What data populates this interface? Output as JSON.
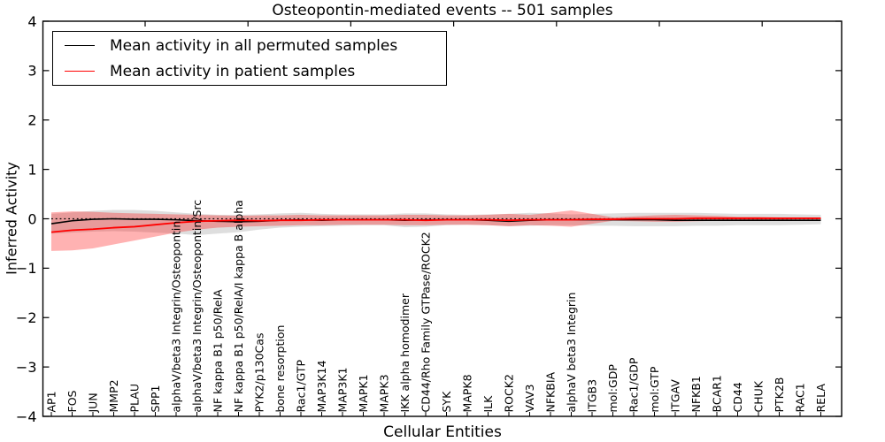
{
  "figure": {
    "background": "#ffffff"
  },
  "chart_data": {
    "type": "line",
    "title": "Osteopontin-mediated events -- 501 samples",
    "xlabel": "Cellular Entities",
    "ylabel": "Inferred Activity",
    "ylim": [
      -4,
      4
    ],
    "ytick_values": [
      -4,
      -3,
      -2,
      -1,
      0,
      1,
      2,
      3,
      4
    ],
    "ytick_labels": [
      "−4",
      "−3",
      "−2",
      "−1",
      "0",
      "1",
      "2",
      "3",
      "4"
    ],
    "grid": false,
    "zero_reference_line": {
      "value": 0,
      "style": "dotted",
      "color": "#000000"
    },
    "legend_position": "upper-left",
    "categories": [
      "AP1",
      "FOS",
      "JUN",
      "MMP2",
      "PLAU",
      "SPP1",
      "alphaV/beta3 Integrin/Osteopontin",
      "alphaV/beta3 Integrin/Osteopontin/Src",
      "NF kappa B1 p50/RelA",
      "NF kappa B1 p50/RelA/I kappa B alpha",
      "PYK2/p130Cas",
      "bone resorption",
      "Rac1/GTP",
      "MAP3K14",
      "MAP3K1",
      "MAPK1",
      "MAPK3",
      "IKK alpha homodimer",
      "CD44/Rho Family GTPase/ROCK2",
      "SYK",
      "MAPK8",
      "ILK",
      "ROCK2",
      "VAV3",
      "NFKBIA",
      "alphaV beta3 Integrin",
      "ITGB3",
      "mol:GDP",
      "Rac1/GDP",
      "mol:GTP",
      "ITGAV",
      "NFKB1",
      "BCAR1",
      "CD44",
      "CHUK",
      "PTK2B",
      "RAC1",
      "RELA"
    ],
    "series": [
      {
        "name": "Mean activity in all permuted samples",
        "color": "#000000",
        "band_color": "rgba(0,0,0,0.13)",
        "values": [
          -0.1,
          -0.04,
          -0.01,
          0.0,
          -0.01,
          -0.01,
          -0.02,
          -0.04,
          -0.05,
          -0.06,
          -0.05,
          -0.03,
          -0.02,
          -0.03,
          -0.02,
          -0.02,
          -0.02,
          -0.03,
          -0.02,
          -0.02,
          -0.02,
          -0.03,
          -0.05,
          -0.03,
          -0.02,
          -0.02,
          -0.02,
          -0.02,
          -0.02,
          -0.02,
          -0.03,
          -0.03,
          -0.03,
          -0.03,
          -0.03,
          -0.03,
          -0.03,
          -0.03
        ],
        "band_high": [
          0.1,
          0.13,
          0.16,
          0.18,
          0.18,
          0.16,
          0.13,
          0.1,
          0.08,
          0.08,
          0.09,
          0.11,
          0.12,
          0.1,
          0.09,
          0.09,
          0.09,
          0.11,
          0.11,
          0.09,
          0.08,
          0.09,
          0.1,
          0.12,
          0.11,
          0.09,
          0.1,
          0.11,
          0.12,
          0.12,
          0.12,
          0.12,
          0.11,
          0.1,
          0.1,
          0.1,
          0.09,
          0.08
        ],
        "band_low": [
          -0.3,
          -0.28,
          -0.26,
          -0.25,
          -0.26,
          -0.28,
          -0.3,
          -0.33,
          -0.3,
          -0.27,
          -0.22,
          -0.18,
          -0.16,
          -0.15,
          -0.14,
          -0.13,
          -0.13,
          -0.17,
          -0.16,
          -0.13,
          -0.12,
          -0.13,
          -0.15,
          -0.14,
          -0.13,
          -0.13,
          -0.14,
          -0.14,
          -0.15,
          -0.15,
          -0.15,
          -0.14,
          -0.14,
          -0.13,
          -0.13,
          -0.13,
          -0.12,
          -0.11
        ]
      },
      {
        "name": "Mean activity in patient samples",
        "color": "#ff0000",
        "band_color": "rgba(255,0,0,0.30)",
        "values": [
          -0.27,
          -0.23,
          -0.21,
          -0.18,
          -0.16,
          -0.12,
          -0.08,
          -0.05,
          -0.04,
          -0.03,
          -0.04,
          -0.03,
          -0.03,
          -0.02,
          -0.02,
          -0.02,
          -0.02,
          -0.02,
          -0.03,
          -0.02,
          -0.02,
          -0.02,
          -0.03,
          -0.02,
          -0.02,
          -0.02,
          -0.01,
          -0.01,
          0.0,
          0.0,
          0.0,
          0.01,
          0.01,
          0.01,
          0.01,
          0.01,
          0.01,
          0.01
        ],
        "band_high": [
          0.13,
          0.15,
          0.14,
          0.12,
          0.11,
          0.1,
          0.09,
          0.08,
          0.07,
          0.06,
          0.07,
          0.07,
          0.08,
          0.07,
          0.07,
          0.07,
          0.07,
          0.08,
          0.08,
          0.07,
          0.07,
          0.08,
          0.1,
          0.08,
          0.12,
          0.17,
          0.1,
          0.03,
          0.05,
          0.07,
          0.08,
          0.07,
          0.06,
          0.04,
          0.04,
          0.03,
          0.03,
          0.03
        ],
        "band_low": [
          -0.65,
          -0.64,
          -0.6,
          -0.52,
          -0.44,
          -0.36,
          -0.28,
          -0.22,
          -0.18,
          -0.16,
          -0.15,
          -0.14,
          -0.13,
          -0.13,
          -0.12,
          -0.12,
          -0.12,
          -0.13,
          -0.13,
          -0.12,
          -0.12,
          -0.13,
          -0.15,
          -0.13,
          -0.14,
          -0.16,
          -0.1,
          -0.04,
          -0.05,
          -0.06,
          -0.06,
          -0.05,
          -0.04,
          -0.02,
          -0.02,
          -0.02,
          -0.01,
          -0.01
        ]
      }
    ]
  }
}
